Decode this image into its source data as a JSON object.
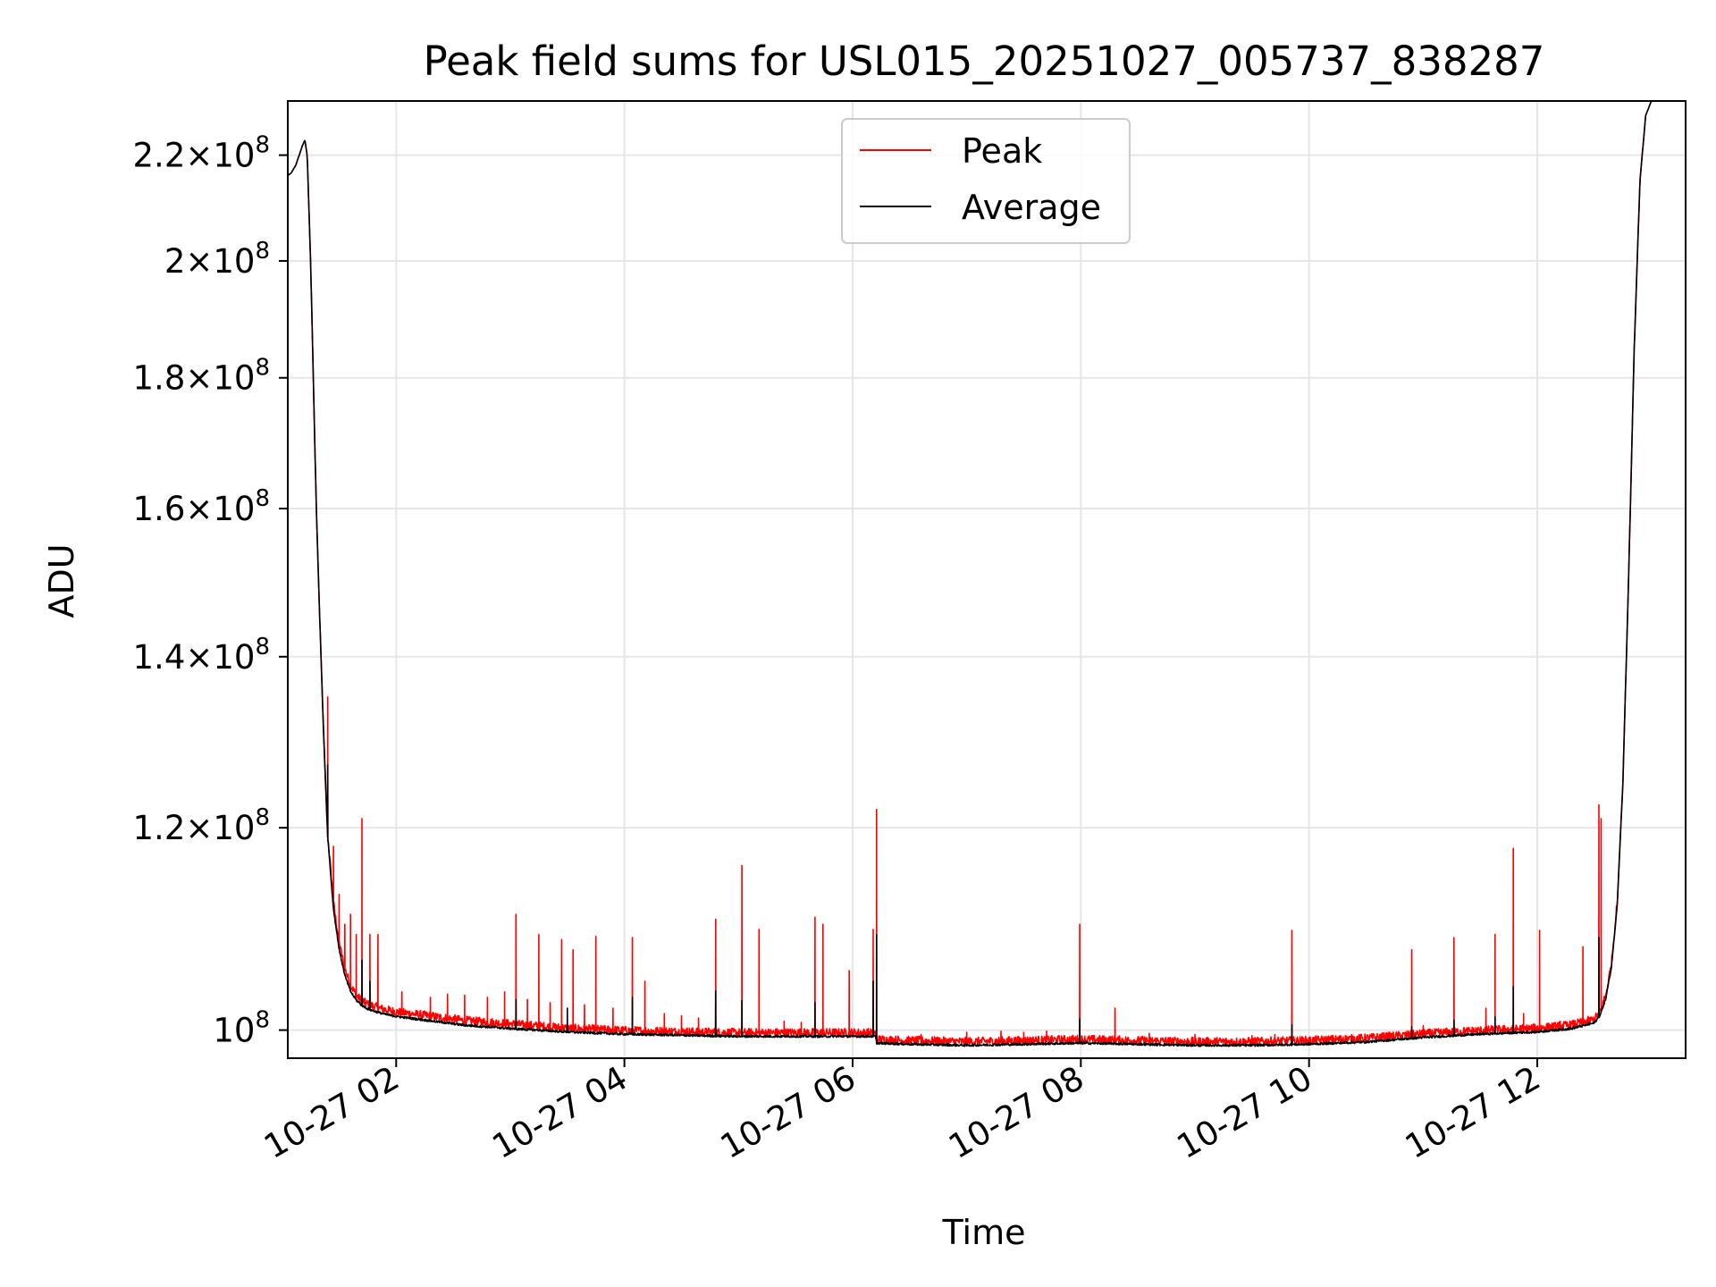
{
  "chart_data": {
    "type": "line",
    "title": "Peak field sums for USL015_20251027_005737_838287",
    "xlabel": "Time",
    "ylabel": "ADU",
    "yscale": "log",
    "grid": true,
    "legend_position": "top-center",
    "x_unit": "hours since 2025-10-27 00:00",
    "xlim": [
      1.05,
      13.3
    ],
    "ylim": [
      97500000,
      231000000
    ],
    "x_ticks": [
      {
        "value": 2,
        "label": "10-27 02"
      },
      {
        "value": 4,
        "label": "10-27 04"
      },
      {
        "value": 6,
        "label": "10-27 06"
      },
      {
        "value": 8,
        "label": "10-27 08"
      },
      {
        "value": 10,
        "label": "10-27 10"
      },
      {
        "value": 12,
        "label": "10-27 12"
      }
    ],
    "y_ticks": [
      {
        "value": 100000000,
        "mantissa": "",
        "exponent": "8"
      },
      {
        "value": 120000000,
        "mantissa": "1.2",
        "exponent": "8"
      },
      {
        "value": 140000000,
        "mantissa": "1.4",
        "exponent": "8"
      },
      {
        "value": 160000000,
        "mantissa": "1.6",
        "exponent": "8"
      },
      {
        "value": 180000000,
        "mantissa": "1.8",
        "exponent": "8"
      },
      {
        "value": 200000000,
        "mantissa": "2",
        "exponent": "8"
      },
      {
        "value": 220000000,
        "mantissa": "2.2",
        "exponent": "8"
      }
    ],
    "series": [
      {
        "name": "Peak",
        "color": "#ff0000",
        "baseline": {
          "x": [
            1.05,
            1.08,
            1.12,
            1.15,
            1.18,
            1.2,
            1.22,
            1.25,
            1.28,
            1.3,
            1.33,
            1.36,
            1.38,
            1.4,
            1.45,
            1.5,
            1.55,
            1.6,
            1.65,
            1.7,
            1.75,
            1.8,
            1.9,
            2.0,
            2.3,
            2.6,
            3.0,
            3.5,
            4.0,
            4.5,
            5.0,
            5.5,
            6.0,
            6.2,
            6.21,
            6.5,
            7.0,
            7.5,
            8.0,
            8.5,
            9.0,
            9.5,
            10.0,
            10.5,
            11.0,
            11.5,
            12.0,
            12.3,
            12.5,
            12.55,
            12.6,
            12.65,
            12.7,
            12.75,
            12.8,
            12.85,
            12.9,
            12.95,
            13.0,
            13.3
          ],
          "y": [
            216000000,
            216500000,
            218000000,
            220000000,
            222000000,
            223000000,
            220000000,
            200000000,
            175000000,
            160000000,
            145000000,
            132000000,
            125000000,
            119000000,
            112000000,
            108000000,
            105500000,
            104000000,
            103000000,
            102500000,
            102200000,
            102000000,
            101700000,
            101500000,
            101100000,
            100700000,
            100400000,
            100000000,
            99800000,
            99700000,
            99600000,
            99600000,
            99600000,
            99600000,
            99000000,
            98900000,
            98800000,
            98900000,
            99000000,
            98900000,
            98800000,
            98800000,
            98900000,
            99100000,
            99500000,
            99800000,
            100000000,
            100300000,
            100800000,
            101500000,
            103000000,
            106000000,
            112000000,
            125000000,
            150000000,
            185000000,
            215000000,
            228000000,
            231000000,
            231000000
          ]
        },
        "spikes": [
          [
            1.4,
            135000000
          ],
          [
            1.45,
            118000000
          ],
          [
            1.5,
            113000000
          ],
          [
            1.55,
            110000000
          ],
          [
            1.6,
            111000000
          ],
          [
            1.65,
            109000000
          ],
          [
            1.7,
            121000000
          ],
          [
            1.77,
            109000000
          ],
          [
            1.84,
            109000000
          ],
          [
            2.05,
            103500000
          ],
          [
            2.3,
            103000000
          ],
          [
            2.45,
            103300000
          ],
          [
            2.6,
            103200000
          ],
          [
            2.8,
            103000000
          ],
          [
            2.95,
            103500000
          ],
          [
            3.05,
            111000000
          ],
          [
            3.15,
            102800000
          ],
          [
            3.25,
            109000000
          ],
          [
            3.35,
            102500000
          ],
          [
            3.45,
            108500000
          ],
          [
            3.55,
            107500000
          ],
          [
            3.65,
            102300000
          ],
          [
            3.75,
            108800000
          ],
          [
            3.9,
            102000000
          ],
          [
            4.07,
            108700000
          ],
          [
            4.18,
            104500000
          ],
          [
            4.35,
            101500000
          ],
          [
            4.5,
            101300000
          ],
          [
            4.65,
            101100000
          ],
          [
            4.8,
            110500000
          ],
          [
            5.03,
            116000000
          ],
          [
            5.18,
            109500000
          ],
          [
            5.4,
            100800000
          ],
          [
            5.55,
            100700000
          ],
          [
            5.67,
            110700000
          ],
          [
            5.74,
            110000000
          ],
          [
            5.97,
            105500000
          ],
          [
            6.18,
            109500000
          ],
          [
            6.21,
            122000000
          ],
          [
            6.6,
            99600000
          ],
          [
            7.0,
            99800000
          ],
          [
            7.3,
            99900000
          ],
          [
            7.5,
            99800000
          ],
          [
            7.7,
            99900000
          ],
          [
            7.99,
            110000000
          ],
          [
            8.3,
            102000000
          ],
          [
            8.6,
            99700000
          ],
          [
            9.0,
            99600000
          ],
          [
            9.5,
            99500000
          ],
          [
            9.7,
            99600000
          ],
          [
            9.85,
            109400000
          ],
          [
            10.3,
            99400000
          ],
          [
            10.7,
            99800000
          ],
          [
            10.9,
            107500000
          ],
          [
            11.0,
            100400000
          ],
          [
            11.27,
            108700000
          ],
          [
            11.55,
            102000000
          ],
          [
            11.63,
            109000000
          ],
          [
            11.79,
            117800000
          ],
          [
            11.88,
            101500000
          ],
          [
            12.02,
            109400000
          ],
          [
            12.2,
            100800000
          ],
          [
            12.4,
            107800000
          ],
          [
            12.54,
            122500000
          ],
          [
            12.56,
            121000000
          ]
        ],
        "noise_amplitude": 0.008
      },
      {
        "name": "Average",
        "color": "#000000",
        "baseline": {
          "x": [
            1.05,
            1.08,
            1.12,
            1.15,
            1.18,
            1.2,
            1.22,
            1.25,
            1.28,
            1.3,
            1.33,
            1.36,
            1.38,
            1.4,
            1.45,
            1.5,
            1.55,
            1.6,
            1.65,
            1.7,
            1.75,
            1.8,
            1.9,
            2.0,
            2.3,
            2.6,
            3.0,
            3.5,
            4.0,
            4.5,
            5.0,
            5.5,
            6.0,
            6.2,
            6.21,
            6.5,
            7.0,
            7.5,
            8.0,
            8.5,
            9.0,
            9.5,
            10.0,
            10.5,
            11.0,
            11.5,
            12.0,
            12.3,
            12.5,
            12.55,
            12.6,
            12.65,
            12.7,
            12.75,
            12.8,
            12.85,
            12.9,
            12.95,
            13.0,
            13.3
          ],
          "y": [
            216000000,
            216500000,
            218000000,
            220000000,
            222000000,
            223000000,
            220000000,
            200000000,
            175000000,
            160000000,
            145000000,
            132000000,
            125000000,
            119000000,
            111500000,
            107500000,
            105000000,
            103500000,
            102700000,
            102200000,
            101900000,
            101700000,
            101400000,
            101200000,
            100800000,
            100400000,
            100100000,
            99800000,
            99600000,
            99500000,
            99400000,
            99400000,
            99400000,
            99400000,
            98800000,
            98700000,
            98600000,
            98700000,
            98800000,
            98700000,
            98600000,
            98600000,
            98700000,
            98900000,
            99300000,
            99600000,
            99800000,
            100100000,
            100600000,
            101300000,
            102800000,
            105800000,
            111800000,
            124800000,
            150000000,
            185000000,
            215000000,
            228000000,
            231000000,
            231000000
          ]
        },
        "spikes": [
          [
            1.4,
            127000000
          ],
          [
            1.7,
            106500000
          ],
          [
            1.77,
            104500000
          ],
          [
            3.05,
            102800000
          ],
          [
            3.5,
            102000000
          ],
          [
            4.07,
            103000000
          ],
          [
            4.8,
            103600000
          ],
          [
            5.03,
            102700000
          ],
          [
            5.67,
            102500000
          ],
          [
            6.18,
            104500000
          ],
          [
            6.21,
            109000000
          ],
          [
            7.99,
            101000000
          ],
          [
            9.85,
            100500000
          ],
          [
            10.9,
            100300000
          ],
          [
            11.27,
            100900000
          ],
          [
            11.63,
            101200000
          ],
          [
            11.79,
            104000000
          ],
          [
            12.54,
            108700000
          ]
        ],
        "noise_amplitude": 0.002
      }
    ]
  }
}
